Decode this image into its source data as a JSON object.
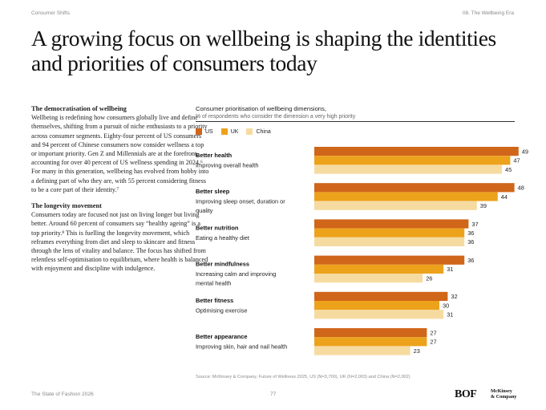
{
  "header": {
    "left": "Consumer Shifts",
    "right": "08. The Wellbeing Era"
  },
  "headline": "A growing focus on wellbeing is shaping the identities and priorities of consumers today",
  "body": {
    "section1_title": "The democratisation of wellbeing",
    "section1_text": "Wellbeing is redefining how consumers globally live and define themselves, shifting from a pursuit of niche enthusiasts to a priority across consumer segments. Eighty-four percent of US consumers and 94 percent of Chinese consumers now consider wellness a top or important priority. Gen Z and Millennials are at the forefront, accounting for over 40 percent of US wellness spending in 2024.⁶ For many in this generation, wellbeing has evolved from hobby into a defining part of who they are, with 55 percent considering fitness to be a core part of their identity.⁷",
    "section2_title": "The longevity movement",
    "section2_text": "Consumers today are focused not just on living longer but living better. Around 60 percent of consumers say “healthy ageing” is a top priority.⁸ This is fuelling the longevity movement, which reframes everything from diet and sleep to skincare and fitness through the lens of vitality and balance. The focus has shifted from relentless self-optimisation to equilibrium, where health is balanced with enjoyment and discipline with indulgence."
  },
  "chart_data": {
    "type": "bar",
    "orientation": "horizontal",
    "title": "Consumer prioritisation of wellbeing dimensions,",
    "subtitle": "% of respondents who consider the dimension a very high priority",
    "categories": [
      {
        "name": "Better health",
        "desc_lines": [
          "Improving overall health"
        ]
      },
      {
        "name": "Better sleep",
        "desc_lines": [
          "Improving sleep onset, duration or",
          "quality"
        ]
      },
      {
        "name": "Better nutrition",
        "desc_lines": [
          "Eating a healthy diet"
        ]
      },
      {
        "name": "Better mindfulness",
        "desc_lines": [
          "Increasing calm and improving",
          "mental health"
        ]
      },
      {
        "name": "Better fitness",
        "desc_lines": [
          "Optimising exercise"
        ]
      },
      {
        "name": "Better appearance",
        "desc_lines": [
          "Improving skin, hair and nail health"
        ]
      }
    ],
    "series": [
      {
        "name": "US",
        "color": "#d0661a",
        "values": [
          49,
          48,
          37,
          36,
          32,
          27
        ]
      },
      {
        "name": "UK",
        "color": "#eda21c",
        "values": [
          47,
          44,
          36,
          31,
          30,
          27
        ]
      },
      {
        "name": "China",
        "color": "#f6dba1",
        "values": [
          45,
          39,
          36,
          26,
          31,
          23
        ]
      }
    ],
    "xlim": [
      0,
      49
    ],
    "source": "Source: McKinsey & Company, Future of Wellness 2025, US (N=3,700), UK (N=2,003) and China (N=2,002)"
  },
  "footer": {
    "left": "The State of Fashion 2026",
    "page": "77",
    "logo_bof": "BOF",
    "logo_mck_1": "McKinsey",
    "logo_mck_2": "& Company"
  }
}
